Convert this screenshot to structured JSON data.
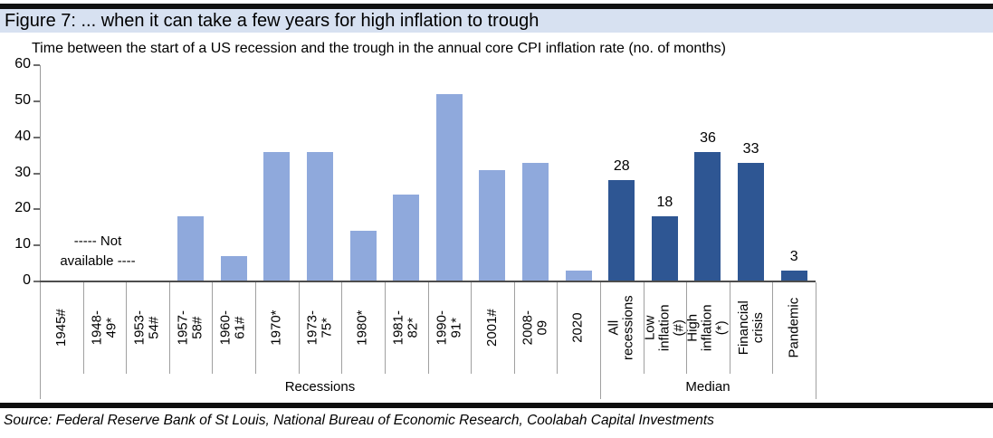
{
  "figure": {
    "title": "Figure 7: ... when it can take a few years for high inflation to trough",
    "subtitle": "Time between the start of a US recession and the trough in the annual core CPI inflation rate (no. of months)",
    "source": "Source: Federal Reserve Bank of St Louis, National Bureau of Economic Research, Coolabah Capital Investments"
  },
  "chart_data": {
    "type": "bar",
    "title": "Time between the start of a US recession and the trough in the annual core CPI inflation rate (no. of months)",
    "xlabel": "",
    "ylabel": "no. of months",
    "ylim": [
      0,
      60
    ],
    "yticks": [
      0,
      10,
      20,
      30,
      40,
      50,
      60
    ],
    "grid": false,
    "legend": false,
    "annotation": {
      "text": "----- Not\navailable ----",
      "over_categories": [
        "1945#",
        "1948-49*",
        "1953-54#"
      ]
    },
    "groups": [
      {
        "label": "Recessions",
        "bar_color": "#8FA9DC",
        "show_value_labels": false,
        "bars": [
          {
            "category": "1945#",
            "value": null
          },
          {
            "category": "1948-49*",
            "value": null
          },
          {
            "category": "1953-54#",
            "value": null
          },
          {
            "category": "1957-58#",
            "value": 18
          },
          {
            "category": "1960-61#",
            "value": 7
          },
          {
            "category": "1970*",
            "value": 36
          },
          {
            "category": "1973-75*",
            "value": 36
          },
          {
            "category": "1980*",
            "value": 14
          },
          {
            "category": "1981-82*",
            "value": 24
          },
          {
            "category": "1990-91*",
            "value": 52
          },
          {
            "category": "2001#",
            "value": 31
          },
          {
            "category": "2008-09",
            "value": 33
          },
          {
            "category": "2020",
            "value": 3
          }
        ]
      },
      {
        "label": "Median",
        "bar_color": "#2E5693",
        "show_value_labels": true,
        "bars": [
          {
            "category": "All\nrecessions",
            "value": 28
          },
          {
            "category": "Low\ninflation (#)",
            "value": 18
          },
          {
            "category": "High\ninflation (*)",
            "value": 36
          },
          {
            "category": "Financial\ncrisis",
            "value": 33
          },
          {
            "category": "Pandemic",
            "value": 3
          }
        ]
      }
    ]
  },
  "colors": {
    "title_bar_bg": "#D7E1F1",
    "rule_black": "#0D0D0D",
    "light_bar": "#8FA9DC",
    "dark_bar": "#2E5693",
    "axis_gray": "#9A9A9A",
    "baseline_gray": "#4D4D4D"
  }
}
